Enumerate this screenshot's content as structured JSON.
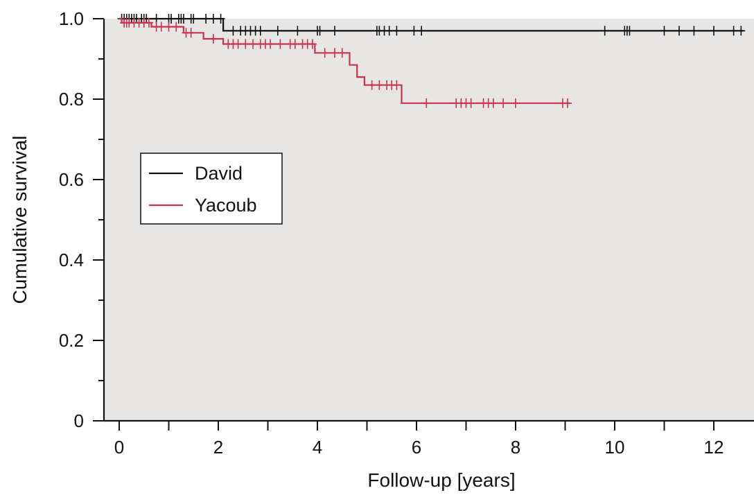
{
  "chart_data": {
    "type": "line",
    "subtype": "kaplan-meier",
    "xlabel": "Follow-up [years]",
    "ylabel": "Cumulative survival",
    "xlim": [
      0,
      12.6
    ],
    "ylim": [
      0,
      1.0
    ],
    "x_ticks": [
      0,
      2,
      4,
      6,
      8,
      10,
      12
    ],
    "x_minor_ticks": [
      1,
      3,
      5,
      7,
      9,
      11
    ],
    "y_ticks": [
      0,
      0.2,
      0.4,
      0.6,
      0.8,
      1.0
    ],
    "y_tick_labels": [
      "0",
      "0.2",
      "0.4",
      "0.6",
      "0.8",
      "1.0"
    ],
    "y_minor_ticks": [
      0.1,
      0.3,
      0.5,
      0.7,
      0.9
    ],
    "plot_background": "#e8e6e5",
    "grid": false,
    "legend_position": "left-middle",
    "series": [
      {
        "name": "David",
        "color": "#111111",
        "steps": [
          [
            0,
            1.0
          ],
          [
            2.1,
            1.0
          ],
          [
            2.1,
            0.97
          ],
          [
            12.6,
            0.97
          ]
        ],
        "censored": [
          [
            0.05,
            1.0
          ],
          [
            0.1,
            1.0
          ],
          [
            0.15,
            1.0
          ],
          [
            0.2,
            1.0
          ],
          [
            0.25,
            1.0
          ],
          [
            0.3,
            1.0
          ],
          [
            0.35,
            1.0
          ],
          [
            0.45,
            1.0
          ],
          [
            0.5,
            1.0
          ],
          [
            0.55,
            1.0
          ],
          [
            0.75,
            1.0
          ],
          [
            1.0,
            1.0
          ],
          [
            1.05,
            1.0
          ],
          [
            1.2,
            1.0
          ],
          [
            1.25,
            1.0
          ],
          [
            1.3,
            1.0
          ],
          [
            1.45,
            1.0
          ],
          [
            1.5,
            1.0
          ],
          [
            1.75,
            1.0
          ],
          [
            1.9,
            1.0
          ],
          [
            2.05,
            1.0
          ],
          [
            2.3,
            0.97
          ],
          [
            2.45,
            0.97
          ],
          [
            2.55,
            0.97
          ],
          [
            2.65,
            0.97
          ],
          [
            2.75,
            0.97
          ],
          [
            2.85,
            0.97
          ],
          [
            3.2,
            0.97
          ],
          [
            3.6,
            0.97
          ],
          [
            4.0,
            0.97
          ],
          [
            4.05,
            0.97
          ],
          [
            4.35,
            0.97
          ],
          [
            5.2,
            0.97
          ],
          [
            5.25,
            0.97
          ],
          [
            5.35,
            0.97
          ],
          [
            5.45,
            0.97
          ],
          [
            5.6,
            0.97
          ],
          [
            5.95,
            0.97
          ],
          [
            6.1,
            0.97
          ],
          [
            9.8,
            0.97
          ],
          [
            10.2,
            0.97
          ],
          [
            10.25,
            0.97
          ],
          [
            10.3,
            0.97
          ],
          [
            11.0,
            0.97
          ],
          [
            11.3,
            0.97
          ],
          [
            11.6,
            0.97
          ],
          [
            12.0,
            0.97
          ],
          [
            12.4,
            0.97
          ],
          [
            12.55,
            0.97
          ]
        ]
      },
      {
        "name": "Yacoub",
        "color": "#c8324a",
        "steps": [
          [
            0,
            1.0
          ],
          [
            0.05,
            1.0
          ],
          [
            0.05,
            0.99
          ],
          [
            0.65,
            0.99
          ],
          [
            0.65,
            0.98
          ],
          [
            1.3,
            0.98
          ],
          [
            1.3,
            0.965
          ],
          [
            1.7,
            0.965
          ],
          [
            1.7,
            0.95
          ],
          [
            2.1,
            0.95
          ],
          [
            2.1,
            0.937
          ],
          [
            3.95,
            0.937
          ],
          [
            3.95,
            0.915
          ],
          [
            4.65,
            0.915
          ],
          [
            4.65,
            0.885
          ],
          [
            4.8,
            0.885
          ],
          [
            4.8,
            0.855
          ],
          [
            4.95,
            0.855
          ],
          [
            4.95,
            0.835
          ],
          [
            5.7,
            0.835
          ],
          [
            5.7,
            0.79
          ],
          [
            9.1,
            0.79
          ]
        ],
        "censored": [
          [
            0.1,
            0.99
          ],
          [
            0.15,
            0.99
          ],
          [
            0.2,
            0.99
          ],
          [
            0.3,
            0.99
          ],
          [
            0.4,
            0.99
          ],
          [
            0.5,
            0.99
          ],
          [
            0.6,
            0.99
          ],
          [
            0.75,
            0.98
          ],
          [
            0.85,
            0.98
          ],
          [
            1.0,
            0.98
          ],
          [
            1.15,
            0.98
          ],
          [
            1.35,
            0.965
          ],
          [
            1.45,
            0.965
          ],
          [
            1.9,
            0.95
          ],
          [
            2.2,
            0.937
          ],
          [
            2.3,
            0.937
          ],
          [
            2.4,
            0.937
          ],
          [
            2.55,
            0.937
          ],
          [
            2.7,
            0.937
          ],
          [
            2.85,
            0.937
          ],
          [
            2.95,
            0.937
          ],
          [
            3.05,
            0.937
          ],
          [
            3.25,
            0.937
          ],
          [
            3.45,
            0.937
          ],
          [
            3.55,
            0.937
          ],
          [
            3.7,
            0.937
          ],
          [
            3.8,
            0.937
          ],
          [
            3.9,
            0.937
          ],
          [
            4.15,
            0.915
          ],
          [
            4.35,
            0.915
          ],
          [
            4.5,
            0.915
          ],
          [
            5.1,
            0.835
          ],
          [
            5.25,
            0.835
          ],
          [
            5.4,
            0.835
          ],
          [
            5.5,
            0.835
          ],
          [
            5.6,
            0.835
          ],
          [
            6.2,
            0.79
          ],
          [
            6.8,
            0.79
          ],
          [
            6.9,
            0.79
          ],
          [
            7.0,
            0.79
          ],
          [
            7.1,
            0.79
          ],
          [
            7.35,
            0.79
          ],
          [
            7.45,
            0.79
          ],
          [
            7.55,
            0.79
          ],
          [
            7.75,
            0.79
          ],
          [
            8.0,
            0.79
          ],
          [
            8.95,
            0.79
          ],
          [
            9.05,
            0.79
          ]
        ]
      }
    ]
  }
}
